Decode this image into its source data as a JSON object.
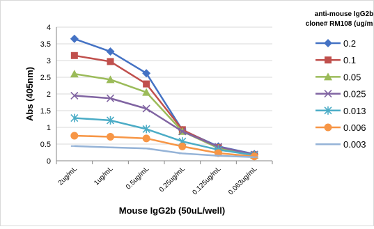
{
  "chart_data": {
    "type": "line",
    "title": "",
    "xlabel": "Mouse IgG2b (50uL/well)",
    "ylabel": "Abs (405nm)",
    "categories": [
      "2ug/mL",
      "1ug/mL",
      "0.5ug/mL",
      "0.25ug/mL",
      "0.125ug/mL",
      "0.063ug/mL"
    ],
    "ylim": [
      0,
      4
    ],
    "yticks": [
      "0",
      "0.5",
      "1",
      "1.5",
      "2",
      "2.5",
      "3",
      "3.5",
      "4"
    ],
    "grid": true,
    "legend": {
      "title_line1": "anti-mouse IgG2b",
      "title_line2": "clone# RM108 (ug/m",
      "placement": "right"
    },
    "series": [
      {
        "name": "0.2",
        "marker": "diamond",
        "color": "#4472c4",
        "values": [
          3.65,
          3.27,
          2.62,
          0.92,
          0.43,
          0.2
        ]
      },
      {
        "name": "0.1",
        "marker": "square",
        "color": "#c0504d",
        "values": [
          3.15,
          2.97,
          2.3,
          0.93,
          0.4,
          0.18
        ]
      },
      {
        "name": "0.05",
        "marker": "triangle",
        "color": "#9bbb59",
        "values": [
          2.6,
          2.43,
          2.05,
          0.88,
          0.38,
          0.17
        ]
      },
      {
        "name": "0.025",
        "marker": "x",
        "color": "#8064a2",
        "values": [
          1.95,
          1.87,
          1.56,
          0.88,
          0.42,
          0.19
        ]
      },
      {
        "name": "0.013",
        "marker": "star",
        "color": "#4bacc6",
        "values": [
          1.28,
          1.21,
          0.95,
          0.58,
          0.33,
          0.17
        ]
      },
      {
        "name": "0.006",
        "marker": "circle",
        "color": "#f79646",
        "values": [
          0.75,
          0.72,
          0.67,
          0.43,
          0.23,
          0.13
        ]
      },
      {
        "name": "0.003",
        "marker": "dash",
        "color": "#95b3d7",
        "values": [
          0.44,
          0.4,
          0.37,
          0.22,
          0.15,
          0.11
        ]
      }
    ]
  }
}
